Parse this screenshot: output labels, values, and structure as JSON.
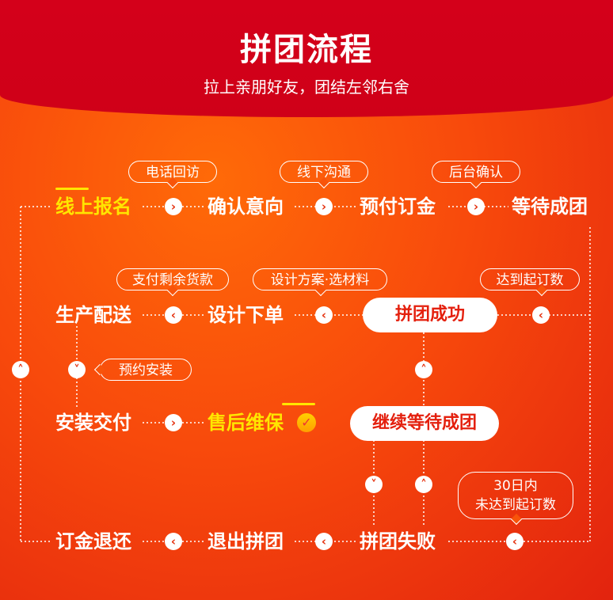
{
  "header": {
    "title": "拼团流程",
    "subtitle": "拉上亲朋好友，团结左邻右舍"
  },
  "nodes": {
    "online_signup": "线上报名",
    "confirm_intent": "确认意向",
    "prepay_deposit": "预付订金",
    "wait_group": "等待成团",
    "production_delivery": "生产配送",
    "design_order": "设计下单",
    "group_success": "拼团成功",
    "install_delivery": "安装交付",
    "after_sales": "售后维保",
    "continue_waiting": "继续等待成团",
    "deposit_refund": "订金退还",
    "exit_group": "退出拼团",
    "group_failed": "拼团失败"
  },
  "tags": {
    "phone_visit": "电话回访",
    "offline_talk": "线下沟通",
    "backend_confirm": "后台确认",
    "pay_balance": "支付剩余货款",
    "design_plan": "设计方案·选材料",
    "reach_order_count": "达到起订数",
    "book_install": "预约安装",
    "days30_line1": "30日内",
    "days30_line2": "未达到起订数"
  },
  "icons": {
    "arrow_right": "›",
    "arrow_left": "‹",
    "arrow_up": "˄",
    "arrow_down": "˅",
    "check": "✓"
  },
  "colors": {
    "accent_yellow": "#ffe600",
    "brand_red": "#d4001a",
    "bg_orange": "#f84a0c"
  }
}
